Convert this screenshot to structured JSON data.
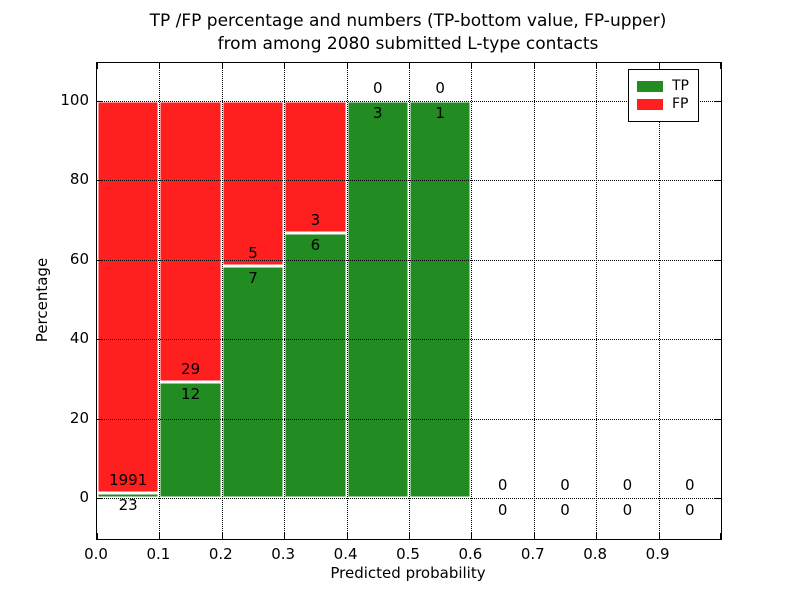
{
  "title": {
    "line1": "TP /FP percentage and numbers (TP-bottom value, FP-upper)",
    "line2": "from among 2080 submitted L-type contacts"
  },
  "chart_data": {
    "type": "bar",
    "stacked": true,
    "title": "TP /FP percentage and numbers (TP-bottom value, FP-upper)\nfrom among 2080 submitted L-type contacts",
    "xlabel": "Predicted probability",
    "ylabel": "Percentage",
    "x_tick_labels": [
      "0.0",
      "0.1",
      "0.2",
      "0.3",
      "0.4",
      "0.5",
      "0.6",
      "0.7",
      "0.8",
      "0.9"
    ],
    "y_tick_values": [
      0,
      20,
      40,
      60,
      80,
      100
    ],
    "xlim": [
      0.0,
      1.0
    ],
    "ylim": [
      -10.3,
      109.6
    ],
    "grid": true,
    "grid_style": "dotted",
    "total_contacts": 2080,
    "categories": [
      "0.0-0.1",
      "0.1-0.2",
      "0.2-0.3",
      "0.3-0.4",
      "0.4-0.5",
      "0.5-0.6",
      "0.6-0.7",
      "0.7-0.8",
      "0.8-0.9",
      "0.9-1.0"
    ],
    "series": [
      {
        "name": "TP",
        "color": "#228b22",
        "counts": [
          23,
          12,
          7,
          6,
          3,
          1,
          0,
          0,
          0,
          0
        ]
      },
      {
        "name": "FP",
        "color": "#ff1f1f",
        "counts": [
          1991,
          29,
          5,
          3,
          0,
          0,
          0,
          0,
          0,
          0
        ]
      }
    ],
    "tp_percent": [
      1.14,
      29.27,
      58.33,
      66.67,
      100.0,
      100.0,
      0,
      0,
      0,
      0
    ],
    "legend": {
      "position": "upper right",
      "entries": [
        {
          "label": "TP",
          "color": "#228b22"
        },
        {
          "label": "FP",
          "color": "#ff1f1f"
        }
      ]
    }
  },
  "colors": {
    "tp": "#228b22",
    "fp": "#ff1f1f",
    "grid": "#000000",
    "frame": "#000000",
    "background": "#ffffff",
    "bar_edge": "#ffffff"
  }
}
